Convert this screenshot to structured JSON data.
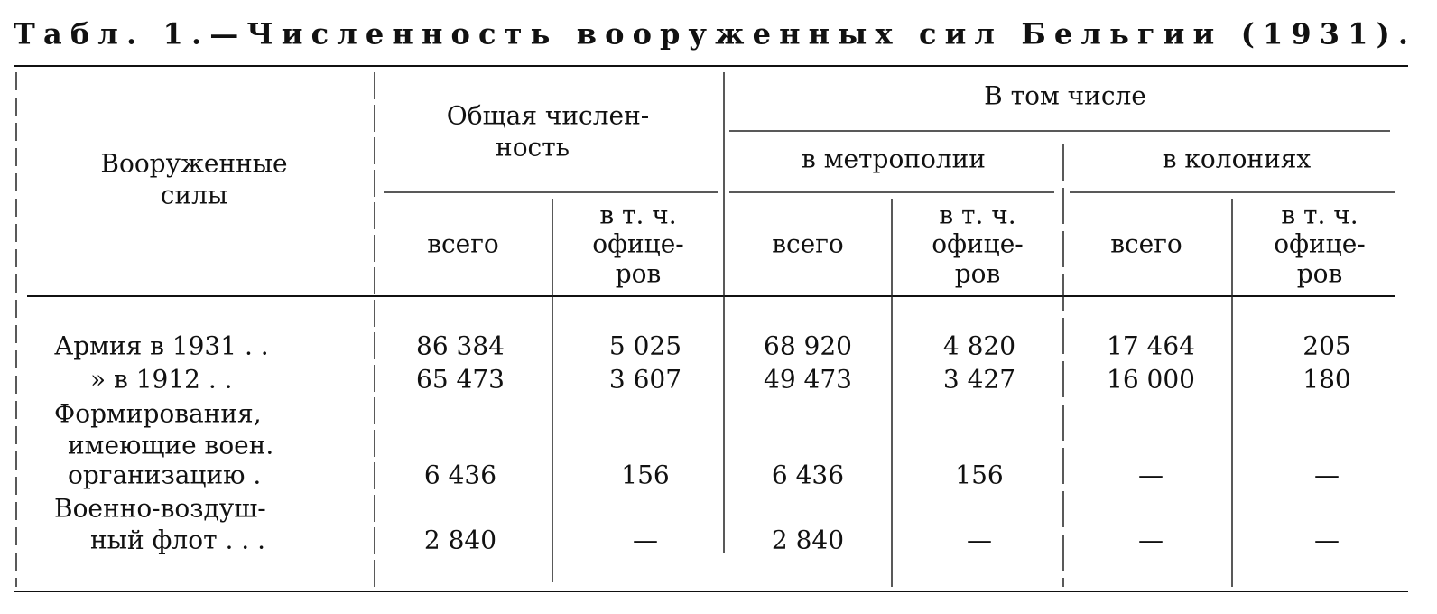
{
  "title": "Табл. 1.—Численность вооруженных сил Бельгии (1931).",
  "table": {
    "header": {
      "forces": [
        "Вооруженные",
        "силы"
      ],
      "total": [
        "Общая числен-",
        "ность"
      ],
      "including": "В том числе",
      "metropolis": "в метрополии",
      "colonies": "в колониях",
      "subheaders": [
        [
          "всего"
        ],
        [
          "в т. ч.",
          "офице-",
          "ров"
        ],
        [
          "всего"
        ],
        [
          "в т. ч.",
          "офице-",
          "ров"
        ],
        [
          "всего"
        ],
        [
          "в т. ч.",
          "офице-",
          "ров"
        ]
      ]
    },
    "rows": [
      {
        "label": [
          "Армия в 1931 . ."
        ],
        "values": [
          "86 384",
          "5 025",
          "68 920",
          "4 820",
          "17 464",
          "205"
        ]
      },
      {
        "label": [
          "» в 1912 . ."
        ],
        "values": [
          "65 473",
          "3 607",
          "49 473",
          "3 427",
          "16 000",
          "180"
        ]
      },
      {
        "label": [
          "Формирования,",
          "имеющие воен.",
          "организацию ."
        ],
        "values": [
          "6 436",
          "156",
          "6 436",
          "156",
          "—",
          "—"
        ]
      },
      {
        "label": [
          "Военно-воздуш-",
          "ный флот . . ."
        ],
        "values": [
          "2 840",
          "—",
          "2 840",
          "—",
          "—",
          "—"
        ]
      }
    ]
  }
}
